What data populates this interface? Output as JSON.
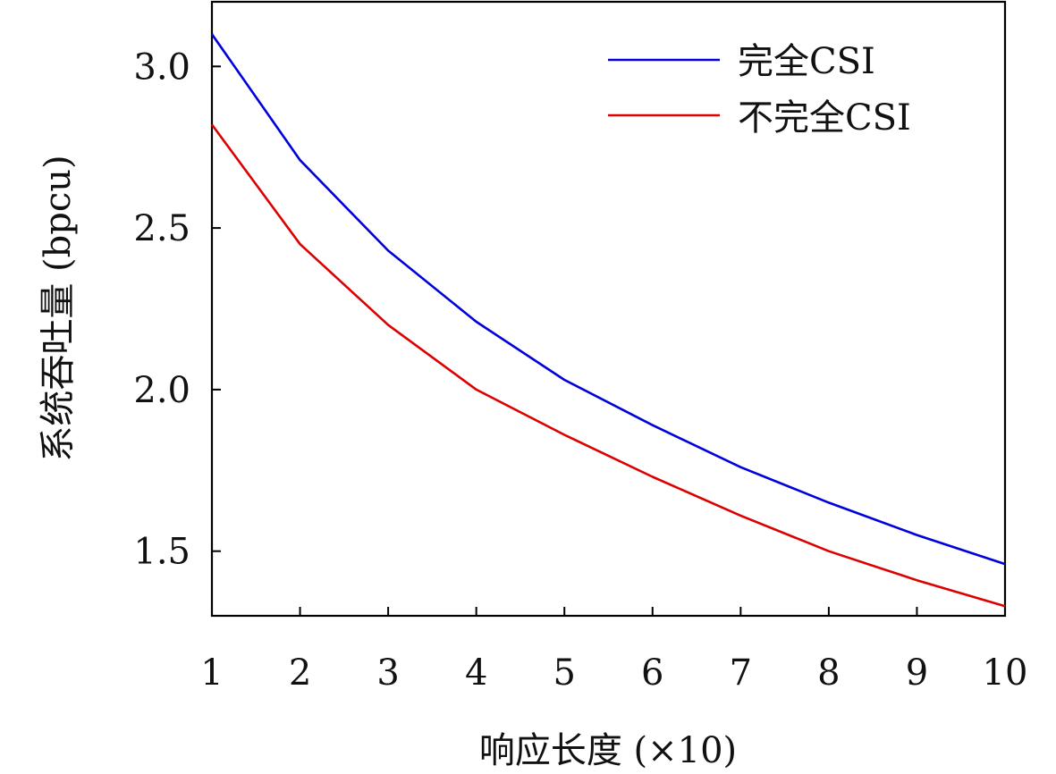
{
  "chart_data": {
    "type": "line",
    "xlabel": "响应长度 (×10)",
    "ylabel": "系统吞吐量 (bpcu)",
    "x": [
      1,
      2,
      3,
      4,
      5,
      6,
      7,
      8,
      9,
      10
    ],
    "xlim": [
      1,
      10
    ],
    "ylim": [
      1.3,
      3.2
    ],
    "xticks": [
      "1",
      "2",
      "3",
      "4",
      "5",
      "6",
      "7",
      "8",
      "9",
      "10"
    ],
    "yticks": [
      "1.5",
      "2.0",
      "2.5",
      "3.0"
    ],
    "ytick_values": [
      1.5,
      2.0,
      2.5,
      3.0
    ],
    "grid": false,
    "legend_position": "top-right",
    "series": [
      {
        "name": "完全CSI",
        "color": "#0000dd",
        "values": [
          3.1,
          2.71,
          2.43,
          2.21,
          2.03,
          1.89,
          1.76,
          1.65,
          1.55,
          1.46
        ]
      },
      {
        "name": "不完全CSI",
        "color": "#dd0000",
        "values": [
          2.82,
          2.45,
          2.2,
          2.0,
          1.86,
          1.73,
          1.61,
          1.5,
          1.41,
          1.33
        ]
      }
    ]
  }
}
